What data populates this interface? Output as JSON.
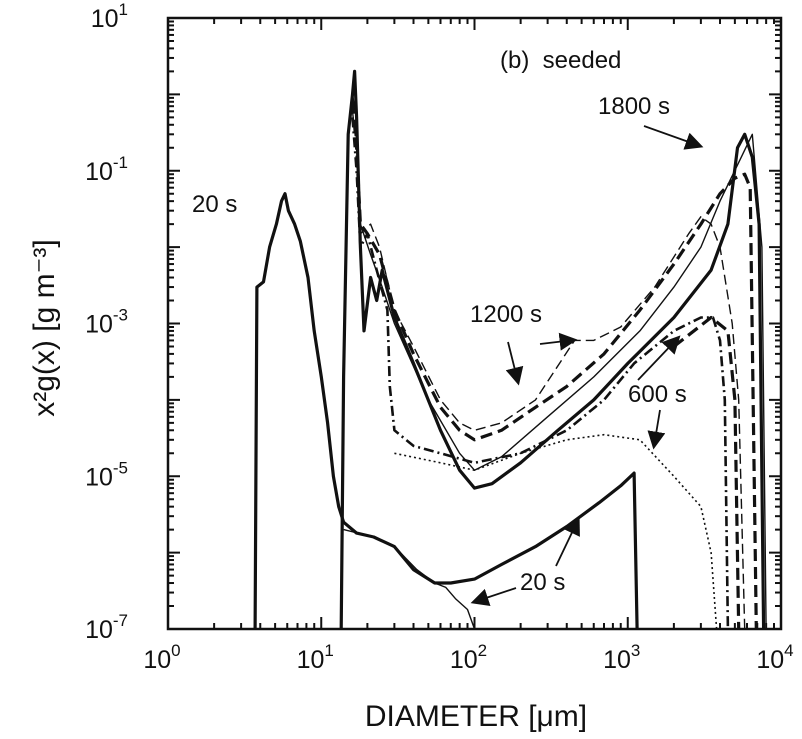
{
  "chart_data": {
    "type": "line",
    "title": "",
    "panel_label": "(b)  seeded",
    "xlabel": "DIAMETER [μm]",
    "ylabel": "x²g(x) [g m⁻³]",
    "xscale": "log",
    "yscale": "log",
    "xlim": [
      1,
      10000
    ],
    "ylim": [
      1e-07,
      10
    ],
    "grid": false,
    "x_ticks": [
      {
        "base": "10",
        "exp": "0"
      },
      {
        "base": "10",
        "exp": "1"
      },
      {
        "base": "10",
        "exp": "2"
      },
      {
        "base": "10",
        "exp": "3"
      },
      {
        "base": "10",
        "exp": "4"
      }
    ],
    "y_ticks": [
      {
        "base": "10",
        "exp": "-7"
      },
      {
        "base": "10",
        "exp": "-5"
      },
      {
        "base": "10",
        "exp": "-3"
      },
      {
        "base": "10",
        "exp": "-1"
      },
      {
        "base": "10",
        "exp": "1"
      }
    ],
    "series": [
      {
        "style": "solid-thick",
        "points": [
          [
            3.7,
            1e-07
          ],
          [
            3.8,
            0.003
          ],
          [
            4.2,
            0.0035
          ],
          [
            4.6,
            0.01
          ],
          [
            5.1,
            0.02
          ],
          [
            5.5,
            0.04
          ],
          [
            5.8,
            0.05
          ],
          [
            6.1,
            0.03
          ],
          [
            6.7,
            0.02
          ],
          [
            7.3,
            0.012
          ],
          [
            8.2,
            0.004
          ],
          [
            9,
            0.0008
          ],
          [
            10,
            0.0002
          ],
          [
            11,
            5e-05
          ],
          [
            12,
            1e-05
          ],
          [
            13,
            4e-06
          ],
          [
            14,
            2.5e-06
          ],
          [
            17,
            1.8e-06
          ],
          [
            22,
            1.6e-06
          ],
          [
            30,
            1.2e-06
          ],
          [
            40,
            6e-07
          ],
          [
            55,
            4e-07
          ],
          [
            70,
            4e-07
          ],
          [
            100,
            4.5e-07
          ],
          [
            150,
            7e-07
          ],
          [
            250,
            1.2e-06
          ],
          [
            400,
            2.2e-06
          ],
          [
            650,
            4.5e-06
          ],
          [
            900,
            7.5e-06
          ],
          [
            1100,
            1.1e-05
          ],
          [
            1150,
            1e-07
          ]
        ]
      },
      {
        "style": "solid-thin",
        "points": [
          [
            14,
            2e-06
          ],
          [
            22,
            1.6e-06
          ],
          [
            30,
            1.2e-06
          ],
          [
            42,
            6e-07
          ],
          [
            55,
            4e-07
          ],
          [
            65,
            3.5e-07
          ],
          [
            75,
            2.5e-07
          ],
          [
            90,
            1.8e-07
          ],
          [
            100,
            1e-07
          ]
        ]
      },
      {
        "style": "solid-thick",
        "points": [
          [
            13.5,
            1e-07
          ],
          [
            14,
            0.0002
          ],
          [
            15,
            0.3
          ],
          [
            16,
            1
          ],
          [
            16.5,
            2
          ],
          [
            17,
            0.5
          ],
          [
            18,
            0.01
          ],
          [
            19,
            0.0008
          ],
          [
            21,
            0.004
          ],
          [
            23,
            0.002
          ],
          [
            25,
            0.005
          ],
          [
            30,
            0.0012
          ],
          [
            40,
            0.0003
          ],
          [
            60,
            4e-05
          ],
          [
            80,
            1.2e-05
          ],
          [
            100,
            7e-06
          ],
          [
            130,
            8e-06
          ],
          [
            200,
            1.5e-05
          ],
          [
            350,
            4e-05
          ],
          [
            600,
            0.0001
          ],
          [
            1000,
            0.0003
          ],
          [
            2000,
            0.0012
          ],
          [
            3500,
            0.005
          ],
          [
            4500,
            0.02
          ],
          [
            5200,
            0.2
          ],
          [
            5800,
            0.3
          ],
          [
            6500,
            0.15
          ],
          [
            7200,
            0.02
          ],
          [
            7700,
            1e-07
          ]
        ]
      },
      {
        "style": "solid-thin",
        "points": [
          [
            16,
            1
          ],
          [
            17,
            0.5
          ],
          [
            18,
            0.02
          ],
          [
            21,
            0.008
          ],
          [
            25,
            0.003
          ],
          [
            30,
            0.001
          ],
          [
            50,
            0.0001
          ],
          [
            80,
            2e-05
          ],
          [
            100,
            1.2e-05
          ],
          [
            150,
            1.8e-05
          ],
          [
            300,
            6e-05
          ],
          [
            600,
            0.0002
          ],
          [
            1200,
            0.0008
          ],
          [
            2000,
            0.003
          ],
          [
            3000,
            0.01
          ],
          [
            4000,
            0.04
          ],
          [
            5500,
            0.15
          ],
          [
            6500,
            0.3
          ],
          [
            7500,
            0.01
          ],
          [
            8000,
            1e-07
          ]
        ]
      },
      {
        "style": "dashed-thick",
        "points": [
          [
            16,
            0.8
          ],
          [
            17,
            0.2
          ],
          [
            18,
            0.02
          ],
          [
            20,
            0.015
          ],
          [
            24,
            0.008
          ],
          [
            30,
            0.0015
          ],
          [
            40,
            0.0004
          ],
          [
            60,
            8e-05
          ],
          [
            80,
            4e-05
          ],
          [
            100,
            3e-05
          ],
          [
            150,
            4e-05
          ],
          [
            250,
            8e-05
          ],
          [
            400,
            0.00015
          ],
          [
            700,
            0.0004
          ],
          [
            1200,
            0.0015
          ],
          [
            2000,
            0.006
          ],
          [
            3000,
            0.02
          ],
          [
            4000,
            0.05
          ],
          [
            5000,
            0.08
          ],
          [
            5800,
            0.09
          ],
          [
            6300,
            0.06
          ],
          [
            6900,
            1e-07
          ]
        ]
      },
      {
        "style": "dashed-thin",
        "points": [
          [
            16,
            0.6
          ],
          [
            17,
            0.2
          ],
          [
            18,
            0.015
          ],
          [
            21,
            0.02
          ],
          [
            24,
            0.01
          ],
          [
            30,
            0.0015
          ],
          [
            40,
            0.0005
          ],
          [
            60,
            0.0001
          ],
          [
            80,
            5e-05
          ],
          [
            100,
            4e-05
          ],
          [
            150,
            5e-05
          ],
          [
            250,
            0.0001
          ],
          [
            450,
            0.0006
          ],
          [
            600,
            0.0006
          ],
          [
            900,
            0.0009
          ],
          [
            1500,
            0.003
          ],
          [
            2500,
            0.015
          ],
          [
            3000,
            0.025
          ],
          [
            3500,
            0.02
          ],
          [
            4000,
            0.01
          ],
          [
            4800,
            0.001
          ],
          [
            5300,
            0.0001
          ],
          [
            5800,
            1e-07
          ]
        ]
      },
      {
        "style": "dashdot",
        "points": [
          [
            16,
            0.5
          ],
          [
            17,
            0.1
          ],
          [
            18,
            0.01
          ],
          [
            20,
            0.015
          ],
          [
            23,
            0.005
          ],
          [
            27,
            0.0015
          ],
          [
            28,
            0.00015
          ],
          [
            30,
            4e-05
          ],
          [
            40,
            2.5e-05
          ],
          [
            60,
            2e-05
          ],
          [
            100,
            1.5e-05
          ],
          [
            200,
            2e-05
          ],
          [
            400,
            4e-05
          ],
          [
            700,
            0.0001
          ],
          [
            1100,
            0.0003
          ],
          [
            2000,
            0.0008
          ],
          [
            3000,
            0.0012
          ],
          [
            3600,
            0.0012
          ],
          [
            4000,
            0.0006
          ],
          [
            4300,
            0.0001
          ],
          [
            4500,
            1e-07
          ]
        ]
      },
      {
        "style": "dashed-thick",
        "points": [
          [
            2000,
            0.0005
          ],
          [
            3500,
            0.0012
          ],
          [
            4500,
            0.0008
          ],
          [
            5000,
            0.0001
          ],
          [
            5300,
            1e-07
          ]
        ]
      },
      {
        "style": "dotted",
        "points": [
          [
            30,
            2e-05
          ],
          [
            60,
            1.5e-05
          ],
          [
            100,
            1.2e-05
          ],
          [
            200,
            2e-05
          ],
          [
            400,
            3e-05
          ],
          [
            700,
            3.5e-05
          ],
          [
            1200,
            3e-05
          ],
          [
            2000,
            1e-05
          ],
          [
            3000,
            4e-06
          ],
          [
            3500,
            1e-06
          ],
          [
            3800,
            1e-07
          ]
        ]
      }
    ],
    "annotations": [
      {
        "text": "20 s"
      },
      {
        "text": "1800 s"
      },
      {
        "text": "1200 s"
      },
      {
        "text": "600 s"
      },
      {
        "text": "20 s"
      }
    ]
  }
}
